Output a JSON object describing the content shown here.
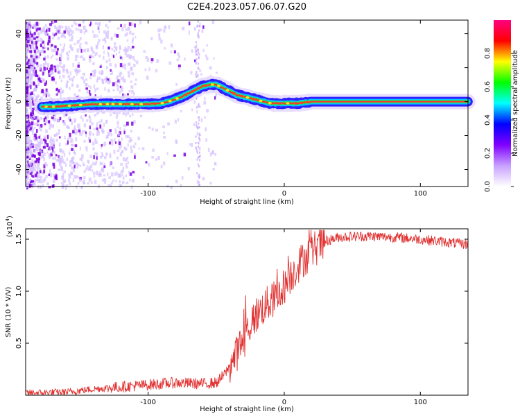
{
  "title": "C2E4.2023.057.06.07.G20",
  "chart_data": [
    {
      "type": "heatmap",
      "xlabel": "Height of straight line (km)",
      "ylabel": "Frequency (Hz)",
      "xlim": [
        -190,
        135
      ],
      "ylim": [
        -50,
        48
      ],
      "xticks": [
        -100,
        0,
        100
      ],
      "yticks": [
        -40,
        -20,
        0,
        20,
        40
      ],
      "trace": {
        "x": [
          -190,
          -170,
          -160,
          -150,
          -140,
          -130,
          -120,
          -110,
          -100,
          -90,
          -85,
          -80,
          -75,
          -70,
          -65,
          -60,
          -55,
          -50,
          -45,
          -40,
          -35,
          -30,
          -25,
          -20,
          -15,
          -10,
          -5,
          0,
          5,
          10,
          15,
          20,
          40,
          60,
          80,
          100,
          120,
          135
        ],
        "y": [
          -3,
          -3,
          -2.5,
          -2,
          -1.5,
          -1.5,
          -1.5,
          -1.5,
          -1.5,
          -1,
          0,
          1.5,
          3,
          5,
          7,
          9,
          10,
          10,
          8,
          6,
          4,
          3,
          2,
          1,
          0,
          -1,
          -1,
          -1,
          -1,
          -1,
          -0.5,
          0,
          0,
          0,
          0,
          0,
          0,
          0
        ]
      },
      "colorbar": {
        "label": "Normalized spectral amplitude",
        "range": [
          0,
          1
        ],
        "ticks": [
          "0.0",
          "0.2",
          "0.4",
          "0.6",
          "0.8"
        ],
        "colors": [
          "#ffffff",
          "#c8a0ff",
          "#8000ff",
          "#0000ff",
          "#00ffff",
          "#00ff00",
          "#ffff00",
          "#ff0000",
          "#ff0080"
        ]
      }
    },
    {
      "type": "line",
      "xlabel": "Height of straight line (km)",
      "ylabel": "SNR (10 * V/V)",
      "yscale_label": "(x10",
      "yscale_exp": "4",
      "yscale_close": ")",
      "xlim": [
        -190,
        135
      ],
      "ylim": [
        0,
        1.6
      ],
      "xticks": [
        -100,
        0,
        100
      ],
      "yticks": [
        "0.5",
        "1.0",
        "1.5"
      ],
      "color": "#e03030",
      "x": [
        -190,
        -160,
        -140,
        -120,
        -100,
        -80,
        -60,
        -50,
        -45,
        -40,
        -35,
        -30,
        -25,
        -20,
        -15,
        -10,
        -5,
        0,
        5,
        10,
        15,
        20,
        25,
        30,
        40,
        60,
        80,
        100,
        120,
        135
      ],
      "y": [
        0.02,
        0.03,
        0.06,
        0.08,
        0.1,
        0.12,
        0.11,
        0.12,
        0.18,
        0.28,
        0.4,
        0.55,
        0.68,
        0.78,
        0.85,
        0.9,
        0.95,
        1.05,
        1.15,
        1.25,
        1.32,
        1.38,
        1.44,
        1.48,
        1.52,
        1.53,
        1.52,
        1.5,
        1.47,
        1.45
      ]
    }
  ]
}
